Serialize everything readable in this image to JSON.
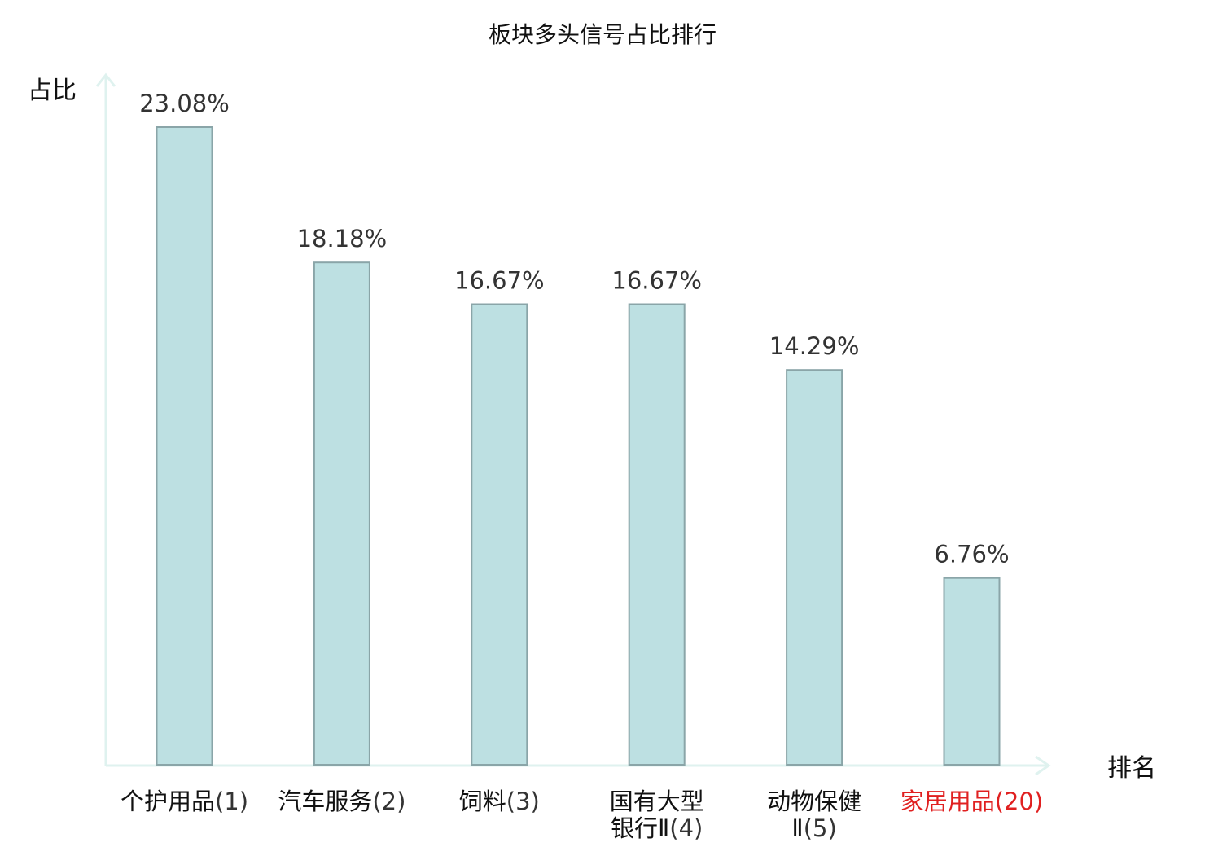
{
  "chart_data": {
    "type": "bar",
    "title": "板块多头信号占比排行",
    "ylabel": "占比",
    "xlabel": "排名",
    "categories": [
      {
        "name_lines": [
          "个护用品"
        ],
        "rank": "(1)",
        "highlight": false
      },
      {
        "name_lines": [
          "汽车服务"
        ],
        "rank": "(2)",
        "highlight": false
      },
      {
        "name_lines": [
          "饲料"
        ],
        "rank": "(3)",
        "highlight": false
      },
      {
        "name_lines": [
          "国有大型",
          "银行Ⅱ"
        ],
        "rank": "(4)",
        "highlight": false
      },
      {
        "name_lines": [
          "动物保健",
          "Ⅱ"
        ],
        "rank": "(5)",
        "highlight": false
      },
      {
        "name_lines": [
          "家居用品"
        ],
        "rank": "(20)",
        "highlight": true
      }
    ],
    "values": [
      23.08,
      18.18,
      16.67,
      16.67,
      14.29,
      6.76
    ],
    "value_labels": [
      "23.08%",
      "18.18%",
      "16.67%",
      "16.67%",
      "14.29%",
      "6.76%"
    ],
    "ylim": [
      0,
      23.08
    ],
    "grid": false,
    "colors": {
      "bar_fill": "#bde0e2",
      "bar_stroke": "#8aa5a8",
      "axis": "#dff2ef",
      "label_normal_name": "#111111",
      "label_normal_rank": "#333333",
      "label_highlight": "#e02020"
    }
  }
}
